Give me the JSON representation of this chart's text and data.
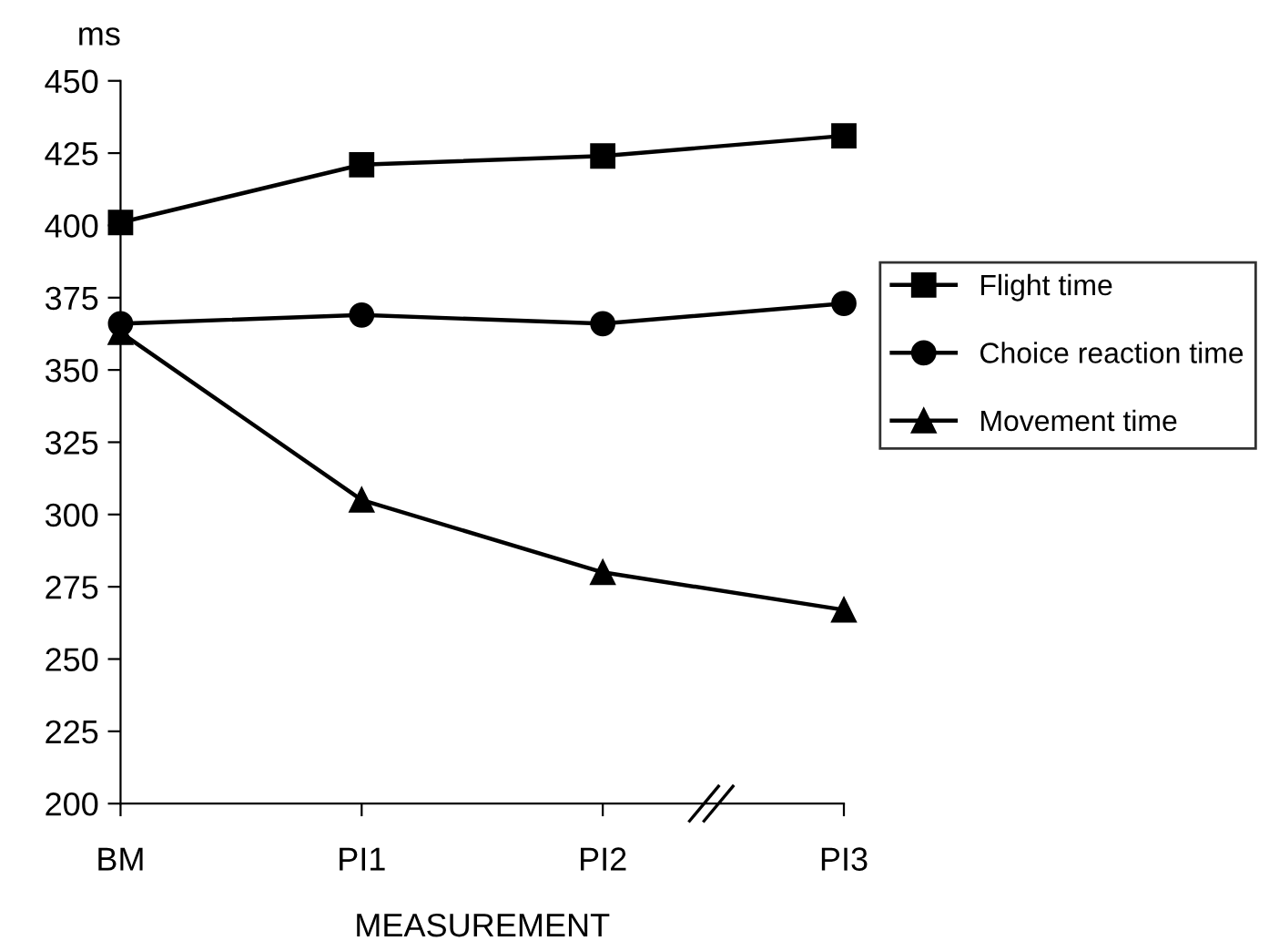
{
  "chart_data": {
    "type": "line",
    "ylabel": "ms",
    "xlabel": "MEASUREMENT",
    "categories": [
      "BM",
      "PI1",
      "PI2",
      "PI3"
    ],
    "series": [
      {
        "name": "Flight time",
        "color": "#000000",
        "marker": "square",
        "values": [
          401,
          421,
          424,
          431
        ]
      },
      {
        "name": "Choice reaction time",
        "color": "#000000",
        "marker": "circle",
        "values": [
          366,
          369,
          366,
          373
        ]
      },
      {
        "name": "Movement time",
        "color": "#000000",
        "marker": "triangle",
        "values": [
          363,
          305,
          280,
          267
        ]
      }
    ],
    "ylim": [
      200,
      450
    ],
    "yticks": [
      200,
      225,
      250,
      275,
      300,
      325,
      350,
      375,
      400,
      425,
      450
    ],
    "grid": false,
    "legend": "right",
    "line_style": "solid"
  }
}
